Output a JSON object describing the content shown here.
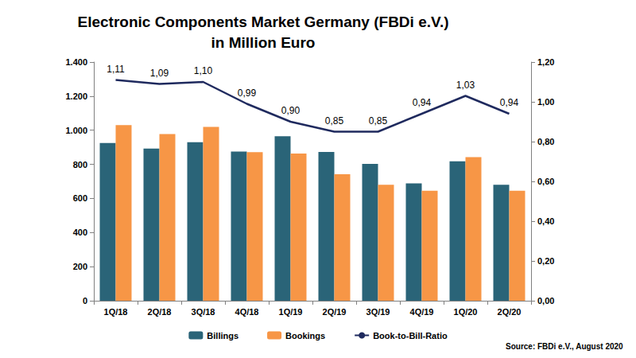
{
  "chart_data": {
    "type": "bar",
    "title": "Electronic Components Market Germany (FBDi e.V.)",
    "subtitle": "in Million Euro",
    "annotations": [
      "Source: FBDi e.V., August 2020"
    ],
    "categories": [
      "1Q/18",
      "2Q/18",
      "3Q/18",
      "4Q/18",
      "1Q/19",
      "2Q/19",
      "3Q/19",
      "4Q/19",
      "1Q/20",
      "2Q/20"
    ],
    "series": [
      {
        "name": "Billings",
        "color": "#2a6478",
        "values": [
          925,
          893,
          930,
          875,
          965,
          873,
          803,
          688,
          818,
          680
        ]
      },
      {
        "name": "Bookings",
        "color": "#f79646",
        "values": [
          1030,
          978,
          1020,
          872,
          863,
          742,
          680,
          645,
          842,
          645
        ]
      },
      {
        "name": "Book-to-Bill-Ratio",
        "type": "line",
        "axis": "y2",
        "color": "#1f2a5e",
        "marker": "none",
        "data_labels": true,
        "values": [
          1.11,
          1.09,
          1.1,
          0.99,
          0.9,
          0.85,
          0.85,
          0.94,
          1.03,
          0.94
        ],
        "value_labels": [
          "1,11",
          "1,09",
          "1,10",
          "0,99",
          "0,90",
          "0,85",
          "0,85",
          "0,94",
          "1,03",
          "0,94"
        ]
      }
    ],
    "ylim": [
      0,
      1400
    ],
    "yticks": [
      0,
      200,
      400,
      600,
      800,
      {
        "value": 1000,
        "label": "1.000"
      },
      {
        "value": 1200,
        "label": "1.200"
      },
      {
        "value": 1400,
        "label": "1.400"
      }
    ],
    "y2lim": [
      0,
      1.2
    ],
    "y2ticks": [
      {
        "value": 0,
        "label": "0,00"
      },
      {
        "value": 0.2,
        "label": "0,20"
      },
      {
        "value": 0.4,
        "label": "0,40"
      },
      {
        "value": 0.6,
        "label": "0,60"
      },
      {
        "value": 0.8,
        "label": "0,80"
      },
      {
        "value": 1.0,
        "label": "1,00"
      },
      {
        "value": 1.2,
        "label": "1,20"
      }
    ],
    "grid": false,
    "legend": "bottom"
  }
}
